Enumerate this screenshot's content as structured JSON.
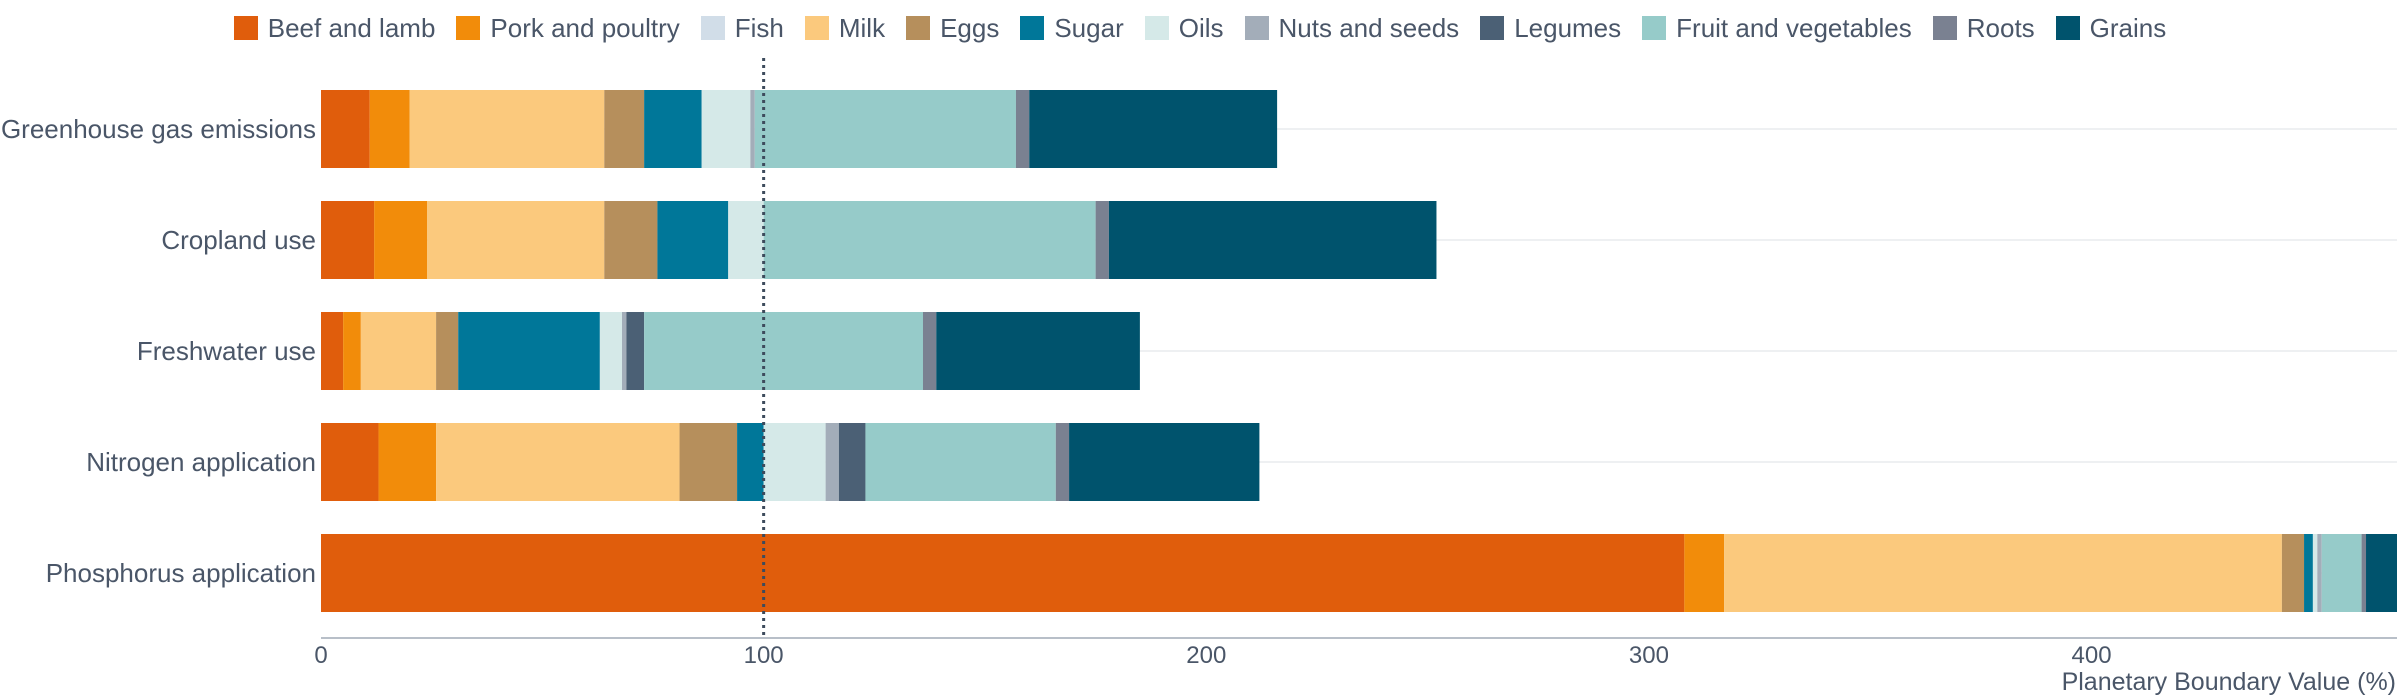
{
  "chart_data": {
    "type": "bar",
    "orientation": "horizontal",
    "stacked": true,
    "xlabel": "Planetary Boundary Value (%)",
    "xlim": [
      0,
      469
    ],
    "xticks": [
      0,
      100,
      200,
      300,
      400
    ],
    "xtick_labels": [
      "0",
      "100",
      "200",
      "300",
      "400"
    ],
    "reference_line": {
      "x": 100,
      "style": "dotted"
    },
    "grid": "horizontal light lines per category",
    "legend_position": "top",
    "categories": [
      "Greenhouse gas emissions",
      "Cropland use",
      "Freshwater use",
      "Nitrogen application",
      "Phosphorus application"
    ],
    "series": [
      {
        "name": "Beef and lamb",
        "color": "#e05d0c",
        "values": [
          11,
          12,
          5,
          13,
          308
        ]
      },
      {
        "name": "Pork and poultry",
        "color": "#f28c0a",
        "values": [
          9,
          12,
          4,
          13,
          9
        ]
      },
      {
        "name": "Fish",
        "color": "#d1dde8",
        "values": [
          0,
          0,
          0,
          0,
          0
        ]
      },
      {
        "name": "Milk",
        "color": "#fbc97d",
        "values": [
          44,
          40,
          17,
          55,
          126
        ]
      },
      {
        "name": "Eggs",
        "color": "#b68f5c",
        "values": [
          9,
          12,
          5,
          13,
          5
        ]
      },
      {
        "name": "Sugar",
        "color": "#007799",
        "values": [
          13,
          16,
          32,
          6,
          2
        ]
      },
      {
        "name": "Oils",
        "color": "#d5e9e8",
        "values": [
          11,
          8,
          5,
          14,
          1
        ]
      },
      {
        "name": "Nuts and seeds",
        "color": "#a3adb9",
        "values": [
          1,
          0,
          1,
          3,
          1
        ]
      },
      {
        "name": "Legumes",
        "color": "#4b6075",
        "values": [
          0,
          0,
          4,
          6,
          0
        ]
      },
      {
        "name": "Fruit and vegetables",
        "color": "#96cbc9",
        "values": [
          59,
          75,
          63,
          43,
          9
        ]
      },
      {
        "name": "Roots",
        "color": "#7a8191",
        "values": [
          3,
          3,
          3,
          3,
          1
        ]
      },
      {
        "name": "Grains",
        "color": "#00536d",
        "values": [
          56,
          74,
          46,
          43,
          7
        ]
      }
    ]
  }
}
